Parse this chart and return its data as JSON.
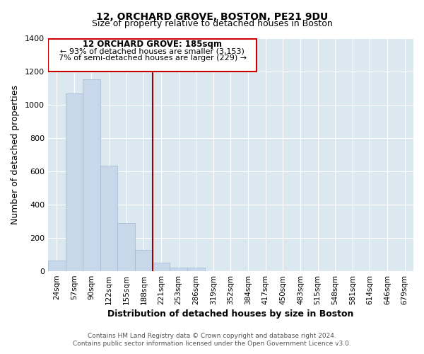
{
  "title": "12, ORCHARD GROVE, BOSTON, PE21 9DU",
  "subtitle": "Size of property relative to detached houses in Boston",
  "xlabel": "Distribution of detached houses by size in Boston",
  "ylabel": "Number of detached properties",
  "footnote1": "Contains HM Land Registry data © Crown copyright and database right 2024.",
  "footnote2": "Contains public sector information licensed under the Open Government Licence v3.0.",
  "bar_labels": [
    "24sqm",
    "57sqm",
    "90sqm",
    "122sqm",
    "155sqm",
    "188sqm",
    "221sqm",
    "253sqm",
    "286sqm",
    "319sqm",
    "352sqm",
    "384sqm",
    "417sqm",
    "450sqm",
    "483sqm",
    "515sqm",
    "548sqm",
    "581sqm",
    "614sqm",
    "646sqm",
    "679sqm"
  ],
  "bar_values": [
    65,
    1070,
    1155,
    635,
    290,
    130,
    50,
    20,
    20,
    0,
    0,
    0,
    0,
    0,
    0,
    0,
    0,
    0,
    0,
    0,
    0
  ],
  "highlight_index": 5,
  "bar_color": "#c8d8ea",
  "bar_edge_color": "#a0b8d0",
  "marker_line_color": "#990000",
  "box_color": "#cc0000",
  "ylim": [
    0,
    1400
  ],
  "yticks": [
    0,
    200,
    400,
    600,
    800,
    1000,
    1200,
    1400
  ],
  "annotation_title": "12 ORCHARD GROVE: 185sqm",
  "annotation_line1": "← 93% of detached houses are smaller (3,153)",
  "annotation_line2": "7% of semi-detached houses are larger (229) →",
  "plot_bg_color": "#dce8f0",
  "grid_color": "#ffffff",
  "fig_bg_color": "#ffffff"
}
